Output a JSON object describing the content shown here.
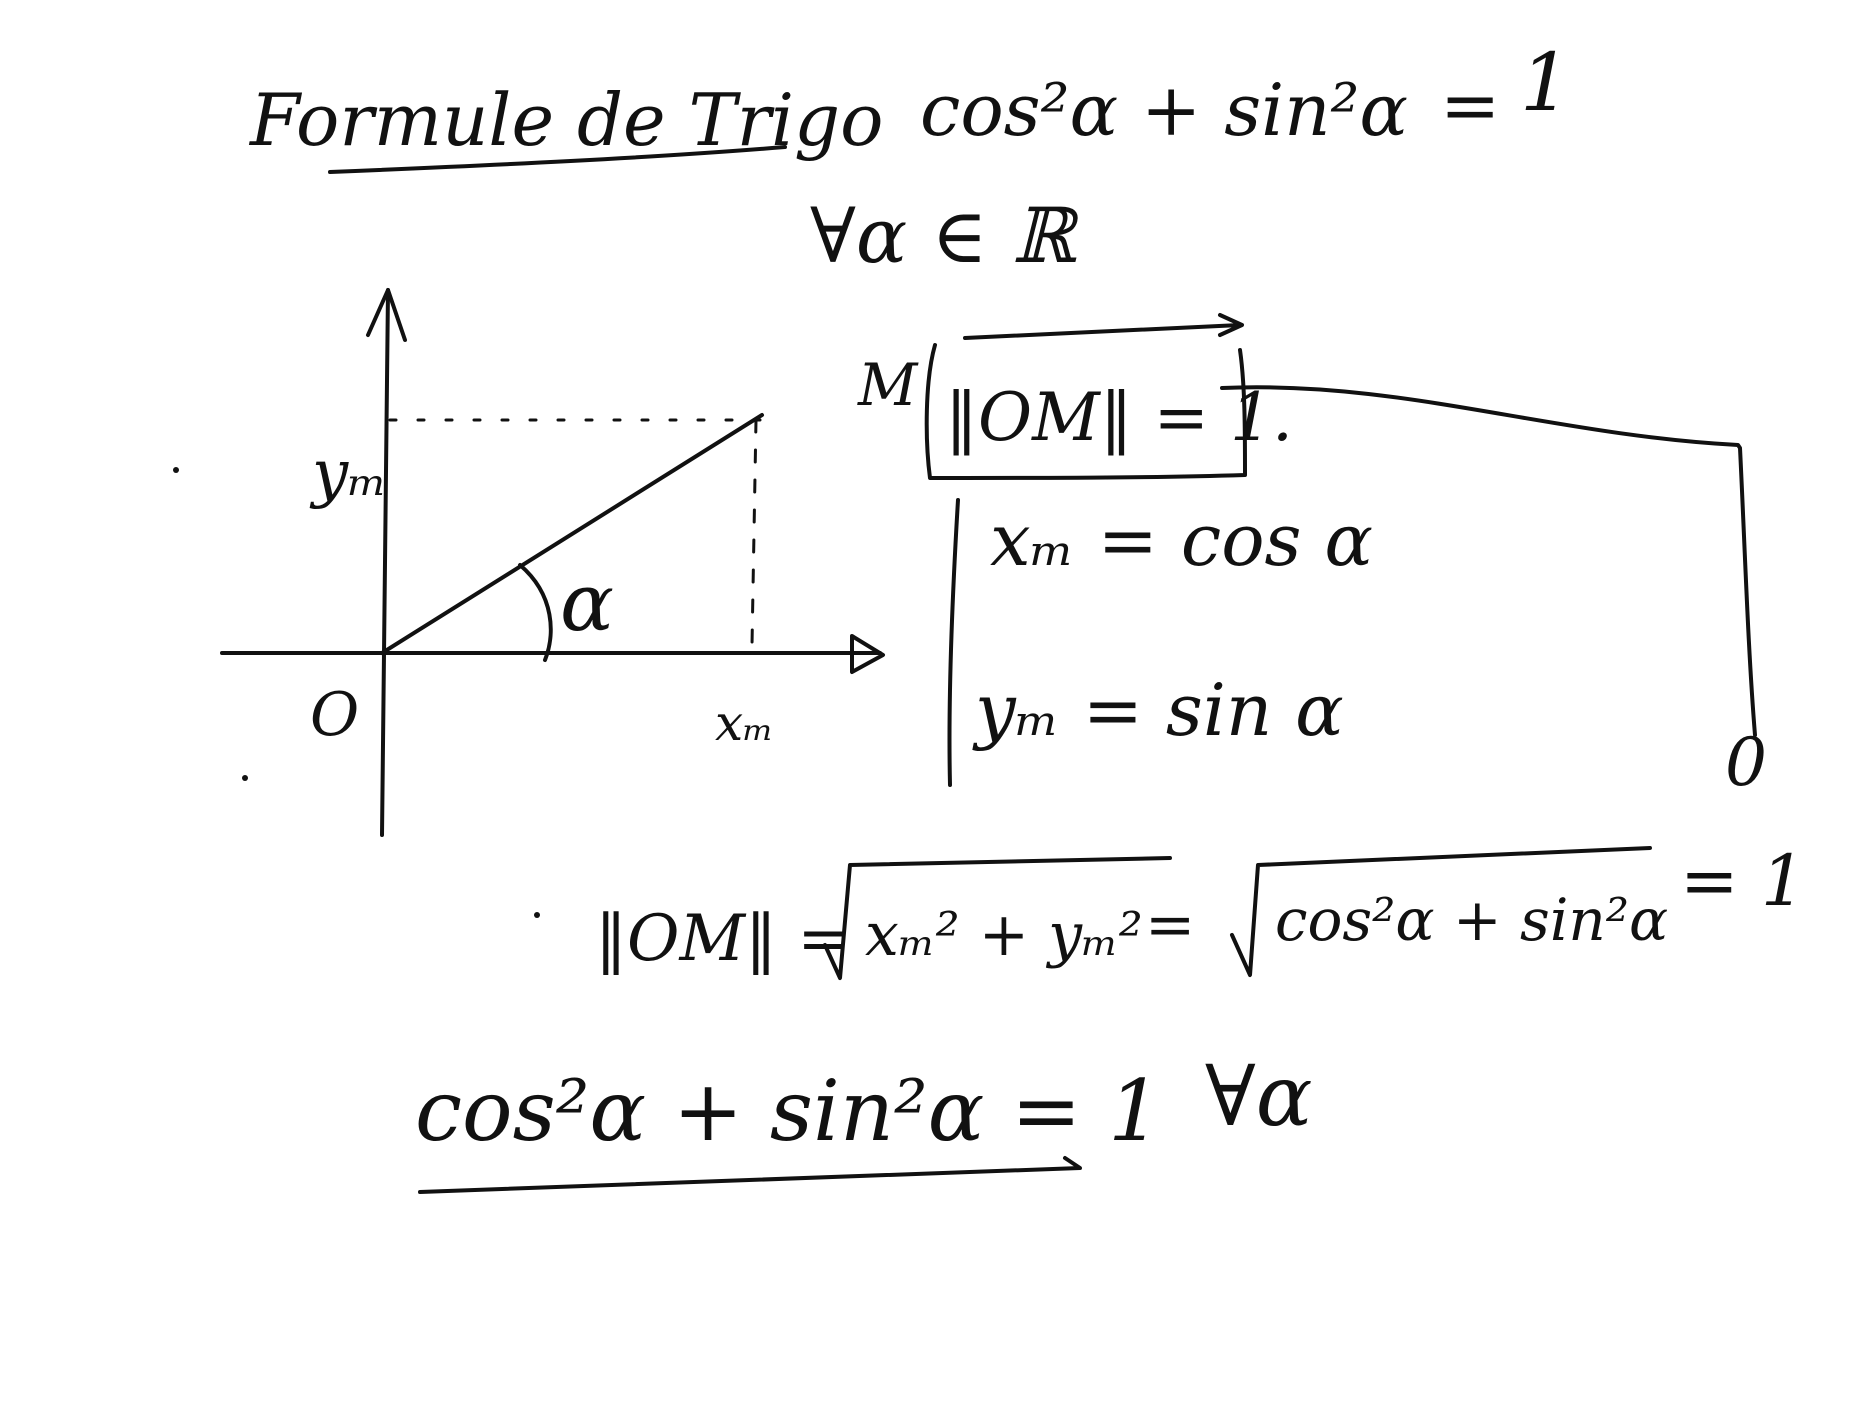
{
  "title": "Formule de Trigo",
  "identity": {
    "lhs": "cos²α + sin²α",
    "eq": "=",
    "rhs": "1"
  },
  "quantifier_real": "∀α ∈ ℝ",
  "diagram": {
    "origin_label": "O",
    "y_label": "yₘ",
    "x_label": "xₘ",
    "angle_label": "α"
  },
  "point_label": "M",
  "norm_box": "‖OM‖ = 1.",
  "system": {
    "x_eq": "xₘ = cos α",
    "y_eq": "yₘ = sin α"
  },
  "zero_mark": "0",
  "norm_line": {
    "lhs": "‖OM‖ =",
    "sqrt1": "xₘ² + yₘ²",
    "eq1": "=",
    "sqrt2": "cos²α + sin²α",
    "eq2": "= 1"
  },
  "conclusion": {
    "formula": "cos²α + sin²α = 1",
    "quantifier": "∀α"
  },
  "colors": {
    "ink": "#111111",
    "paper": "#ffffff"
  }
}
